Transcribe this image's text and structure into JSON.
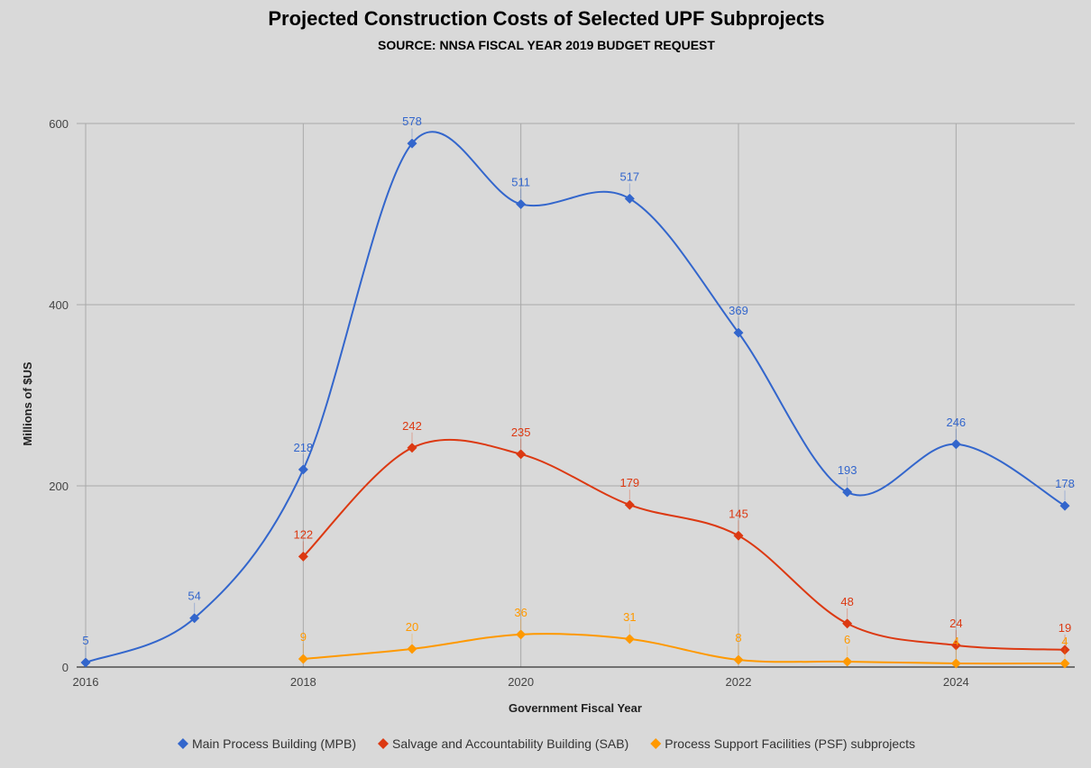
{
  "chart_data": {
    "type": "line",
    "title": "Projected Construction Costs of Selected UPF Subprojects",
    "subtitle": "SOURCE: NNSA FISCAL YEAR 2019 BUDGET REQUEST",
    "xlabel": "Government Fiscal Year",
    "ylabel": "Millions of $US",
    "xlim": [
      2016,
      2025
    ],
    "ylim": [
      0,
      600
    ],
    "x_ticks": [
      2016,
      2018,
      2020,
      2022,
      2024
    ],
    "y_ticks": [
      0,
      200,
      400,
      600
    ],
    "grid": true,
    "legend_position": "bottom",
    "smooth": true,
    "series": [
      {
        "name": "Main Process Building (MPB)",
        "color": "#3366cc",
        "points": [
          {
            "x": 2016,
            "y": 5
          },
          {
            "x": 2017,
            "y": 54
          },
          {
            "x": 2018,
            "y": 218
          },
          {
            "x": 2019,
            "y": 578
          },
          {
            "x": 2020,
            "y": 511
          },
          {
            "x": 2021,
            "y": 517
          },
          {
            "x": 2022,
            "y": 369
          },
          {
            "x": 2023,
            "y": 193
          },
          {
            "x": 2024,
            "y": 246
          },
          {
            "x": 2025,
            "y": 178
          }
        ]
      },
      {
        "name": "Salvage and Accountability Building (SAB)",
        "color": "#dc3912",
        "points": [
          {
            "x": 2018,
            "y": 122
          },
          {
            "x": 2019,
            "y": 242
          },
          {
            "x": 2020,
            "y": 235
          },
          {
            "x": 2021,
            "y": 179
          },
          {
            "x": 2022,
            "y": 145
          },
          {
            "x": 2023,
            "y": 48
          },
          {
            "x": 2024,
            "y": 24
          },
          {
            "x": 2025,
            "y": 19
          }
        ]
      },
      {
        "name": "Process Support Facilities (PSF) subprojects",
        "color": "#ff9900",
        "points": [
          {
            "x": 2018,
            "y": 9
          },
          {
            "x": 2019,
            "y": 20
          },
          {
            "x": 2020,
            "y": 36
          },
          {
            "x": 2021,
            "y": 31
          },
          {
            "x": 2022,
            "y": 8
          },
          {
            "x": 2023,
            "y": 6
          },
          {
            "x": 2024,
            "y": 4
          },
          {
            "x": 2025,
            "y": 4
          }
        ]
      }
    ]
  }
}
